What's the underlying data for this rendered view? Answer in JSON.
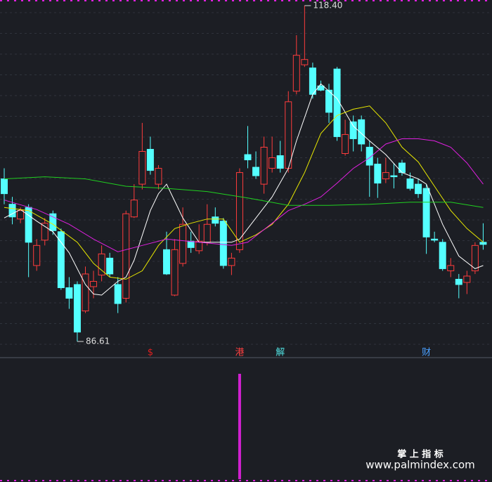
{
  "chart_data": {
    "type": "candlestick",
    "up_color": "#ff3c3c",
    "down_color": "#54ffff",
    "open": [
      102.0,
      99.6,
      98.2,
      99.3,
      93.8,
      96.2,
      98.7,
      97.0,
      91.7,
      92.0,
      89.5,
      91.8,
      92.9,
      94.5,
      92.0,
      90.7,
      98.4,
      101.5,
      104.8,
      101.5,
      95.3,
      91.0,
      94.0,
      96.1,
      95.2,
      96.0,
      98.4,
      98.0,
      93.8,
      95.3,
      104.3,
      103.1,
      101.5,
      103.0,
      104.2,
      103.0,
      110.3,
      112.8,
      112.5,
      110.8,
      110.4,
      112.4,
      104.4,
      107.4,
      107.6,
      105.0,
      103.4,
      102.0,
      102.3,
      103.5,
      102.0,
      101.5,
      101.1,
      96.3,
      96.0,
      93.3,
      92.5,
      92.2,
      93.3,
      96.0
    ],
    "high": [
      103.0,
      100.3,
      99.3,
      99.6,
      96.3,
      98.3,
      99.0,
      97.3,
      92.7,
      92.3,
      93.7,
      93.3,
      95.7,
      95.0,
      92.7,
      99.0,
      101.5,
      107.3,
      106.0,
      103.3,
      97.0,
      96.3,
      99.3,
      97.0,
      97.7,
      99.6,
      99.3,
      98.3,
      95.0,
      103.0,
      107.0,
      104.6,
      106.0,
      106.0,
      105.6,
      110.3,
      115.6,
      118.4,
      113.0,
      111.3,
      111.0,
      112.6,
      107.6,
      108.0,
      108.0,
      105.6,
      104.0,
      104.0,
      103.5,
      103.8,
      102.6,
      102.0,
      101.5,
      97.0,
      96.3,
      94.5,
      93.0,
      93.3,
      96.0,
      97.8
    ],
    "low": [
      99.6,
      97.7,
      97.8,
      92.7,
      93.3,
      95.7,
      96.7,
      91.5,
      89.7,
      86.61,
      89.3,
      90.7,
      92.3,
      92.7,
      89.3,
      90.3,
      98.3,
      101.0,
      102.4,
      101.0,
      92.9,
      90.9,
      93.7,
      95.0,
      94.9,
      95.7,
      97.5,
      93.5,
      92.9,
      95.0,
      103.0,
      102.0,
      100.6,
      102.6,
      102.6,
      102.6,
      110.0,
      112.6,
      109.6,
      110.3,
      107.3,
      105.6,
      104.2,
      104.6,
      104.6,
      100.3,
      100.2,
      101.6,
      101.1,
      102.3,
      100.9,
      100.2,
      94.9,
      96.0,
      93.3,
      92.7,
      90.7,
      91.1,
      93.0,
      95.3
    ],
    "close": [
      100.6,
      98.4,
      99.0,
      96.0,
      95.7,
      97.8,
      97.1,
      91.7,
      90.7,
      87.5,
      93.0,
      92.3,
      94.9,
      93.0,
      90.2,
      98.7,
      100.0,
      104.6,
      102.8,
      103.0,
      93.0,
      95.3,
      97.7,
      95.5,
      96.1,
      97.7,
      97.8,
      93.8,
      94.5,
      102.6,
      103.8,
      102.3,
      105.0,
      104.0,
      103.0,
      109.3,
      113.7,
      113.3,
      110.0,
      110.4,
      108.3,
      106.0,
      106.2,
      105.8,
      105.3,
      103.3,
      101.6,
      102.6,
      102.2,
      102.6,
      101.1,
      100.6,
      96.5,
      96.2,
      93.5,
      93.8,
      92.0,
      92.8,
      95.7,
      95.8
    ],
    "high_label": "118.40",
    "low_label": "86.61",
    "ma_lines": [
      {
        "color": "#ffffff",
        "x": [
          0,
          2,
          4,
          6,
          8,
          10,
          11,
          12,
          14,
          15,
          16,
          18,
          19,
          20,
          22,
          24,
          26,
          28,
          29,
          31,
          33,
          35,
          36,
          38,
          39,
          41,
          43,
          45,
          47,
          49,
          51,
          52,
          54,
          56,
          58,
          59
        ],
        "values": [
          98.3,
          99.1,
          98.0,
          97.0,
          95.0,
          92.0,
          91.1,
          91.0,
          92.3,
          92.7,
          94.3,
          99.0,
          100.6,
          101.5,
          98.3,
          96.0,
          96.0,
          96.0,
          96.3,
          98.3,
          100.3,
          103.0,
          105.6,
          110.0,
          111.0,
          109.6,
          107.0,
          105.6,
          104.3,
          102.6,
          102.0,
          101.5,
          97.7,
          94.7,
          93.5,
          93.8
        ]
      },
      {
        "color": "#e8e800",
        "x": [
          0,
          3,
          6,
          9,
          11,
          13,
          15,
          17,
          19,
          21,
          23,
          25,
          27,
          29,
          31,
          33,
          35,
          37,
          39,
          41,
          43,
          45,
          47,
          49,
          51,
          53,
          55,
          57,
          59
        ],
        "values": [
          99.3,
          99.0,
          97.7,
          96.0,
          94.0,
          92.7,
          92.5,
          93.3,
          95.7,
          97.3,
          97.8,
          98.2,
          98.2,
          96.0,
          96.7,
          97.7,
          99.6,
          102.6,
          106.3,
          108.0,
          108.6,
          108.9,
          107.3,
          105.0,
          103.6,
          101.3,
          99.0,
          97.3,
          96.0
        ]
      },
      {
        "color": "#e020e0",
        "x": [
          0,
          4,
          8,
          11,
          14,
          17,
          20,
          24,
          28,
          30,
          33,
          35,
          37,
          39,
          41,
          43,
          45,
          47,
          49,
          51,
          53,
          55,
          57,
          59
        ],
        "values": [
          100.0,
          99.1,
          97.7,
          96.3,
          95.1,
          95.7,
          96.3,
          96.0,
          95.7,
          96.0,
          97.8,
          99.0,
          99.6,
          100.3,
          101.6,
          103.0,
          104.0,
          105.3,
          105.8,
          105.8,
          105.6,
          105.0,
          103.5,
          101.5
        ]
      },
      {
        "color": "#20d020",
        "x": [
          0,
          5,
          10,
          15,
          20,
          25,
          30,
          35,
          40,
          45,
          50,
          55,
          59
        ],
        "values": [
          102.0,
          102.2,
          102.0,
          101.3,
          101.1,
          100.8,
          100.2,
          99.5,
          99.5,
          99.6,
          99.8,
          99.8,
          99.3
        ]
      }
    ],
    "events": [
      null,
      null,
      null,
      null,
      null,
      null,
      null,
      null,
      null,
      null,
      null,
      null,
      null,
      null,
      null,
      null,
      null,
      null,
      "$",
      null,
      null,
      null,
      null,
      null,
      null,
      null,
      null,
      null,
      null,
      "港",
      null,
      null,
      null,
      null,
      "解",
      null,
      null,
      null,
      null,
      null,
      null,
      null,
      null,
      null,
      null,
      null,
      null,
      null,
      null,
      null,
      null,
      null,
      "财",
      null,
      null,
      null,
      null,
      null,
      null,
      null
    ],
    "event_colors": [
      null,
      null,
      null,
      null,
      null,
      null,
      null,
      null,
      null,
      null,
      null,
      null,
      null,
      null,
      null,
      null,
      null,
      null,
      "#e02020",
      null,
      null,
      null,
      null,
      null,
      null,
      null,
      null,
      null,
      null,
      "#ff4040",
      null,
      null,
      null,
      null,
      "#50e0e0",
      null,
      null,
      null,
      null,
      null,
      null,
      null,
      null,
      null,
      null,
      null,
      null,
      null,
      null,
      null,
      null,
      null,
      "#4aa0ff",
      null,
      null,
      null,
      null,
      null,
      null,
      null
    ],
    "signal": {
      "color": "#d020d0",
      "values": [
        null,
        null,
        null,
        null,
        null,
        null,
        null,
        null,
        null,
        null,
        null,
        null,
        null,
        null,
        null,
        null,
        null,
        null,
        null,
        null,
        null,
        null,
        null,
        null,
        null,
        null,
        null,
        null,
        null,
        1,
        null,
        null,
        null,
        null,
        null,
        null,
        null,
        null,
        null,
        null,
        null,
        null,
        null,
        null,
        null,
        null,
        null,
        null,
        null,
        null,
        null,
        null,
        null,
        null,
        null,
        null,
        null,
        null,
        null,
        null
      ]
    },
    "watermark_title": "掌 上 指 标",
    "watermark_url": "www.palmindex.com"
  }
}
